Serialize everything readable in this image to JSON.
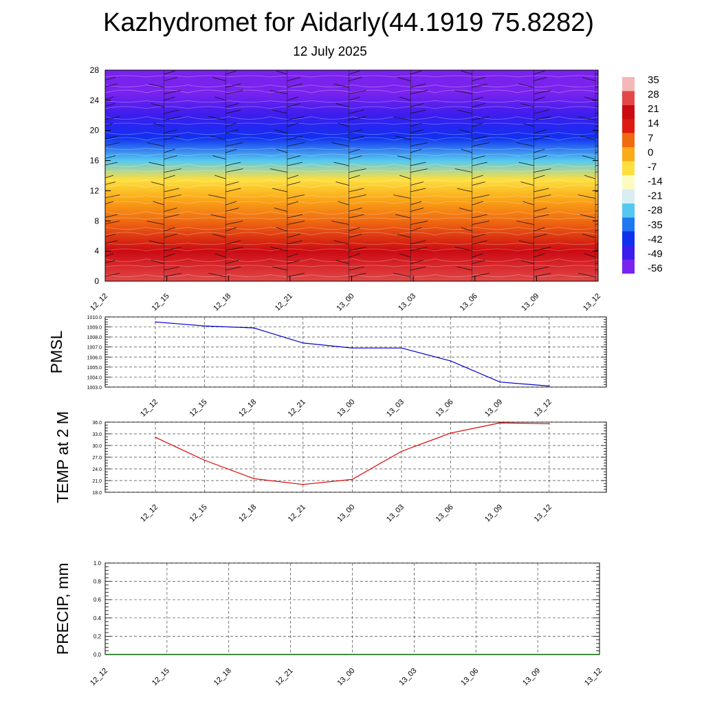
{
  "title": "Kazhydromet for Aidarly(44.1919 75.8282)",
  "subtitle": "12 July 2025",
  "time_labels": [
    "12_12",
    "12_15",
    "12_18",
    "12_21",
    "13_00",
    "13_03",
    "13_06",
    "13_09",
    "13_12"
  ],
  "chart_data": [
    {
      "type": "heatmap",
      "name": "temperature-profile",
      "x": [
        "12_12",
        "12_15",
        "12_18",
        "12_21",
        "13_00",
        "13_03",
        "13_06",
        "13_09",
        "13_12"
      ],
      "y_ticks": [
        0,
        4,
        8,
        12,
        16,
        20,
        24,
        28
      ],
      "ylim": [
        0,
        28
      ],
      "colorbar_labels": [
        "35",
        "28",
        "21",
        "14",
        "7",
        "0",
        "-7",
        "-14",
        "-21",
        "-28",
        "-35",
        "-42",
        "-49",
        "-56"
      ],
      "colorbar_range": [
        -63,
        42
      ],
      "colorscale": [
        "#7a22ee",
        "#3b1dee",
        "#1030f0",
        "#1e78f0",
        "#55c8ef",
        "#d8eef2",
        "#fdfbc0",
        "#fde040",
        "#fbaa18",
        "#f06a10",
        "#dc1a12",
        "#cc0a12",
        "#e24848",
        "#f4b8b8"
      ],
      "values_by_level": [
        {
          "level": 0,
          "value": 28
        },
        {
          "level": 4,
          "value": 20
        },
        {
          "level": 8,
          "value": 10
        },
        {
          "level": 11,
          "value": 3
        },
        {
          "level": 13.5,
          "value": -8
        },
        {
          "level": 16,
          "value": -28
        },
        {
          "level": 19,
          "value": -45
        },
        {
          "level": 22,
          "value": -50
        },
        {
          "level": 25,
          "value": -57
        },
        {
          "level": 28,
          "value": -60
        }
      ],
      "grid": false
    },
    {
      "type": "line",
      "ylabel": "PMSL",
      "x": [
        "12_12",
        "12_15",
        "12_18",
        "12_21",
        "13_00",
        "13_03",
        "13_06",
        "13_09",
        "13_12"
      ],
      "y_ticks": [
        "1010.0",
        "1009.0",
        "1008.0",
        "1007.0",
        "1006.0",
        "1005.0",
        "1004.0",
        "1003.0"
      ],
      "ylim": [
        1003,
        1010
      ],
      "series": [
        {
          "values": [
            1009.5,
            1009.1,
            1008.9,
            1007.4,
            1006.9,
            1006.9,
            1005.6,
            1003.5,
            1003.1
          ],
          "color": "#0000cc"
        }
      ],
      "grid": true
    },
    {
      "type": "line",
      "ylabel": "TEMP at 2 M",
      "x": [
        "12_12",
        "12_15",
        "12_18",
        "12_21",
        "13_00",
        "13_03",
        "13_06",
        "13_09",
        "13_12"
      ],
      "y_ticks": [
        "36.0",
        "33.0",
        "30.0",
        "27.0",
        "24.0",
        "21.0",
        "18.0"
      ],
      "ylim": [
        18,
        36
      ],
      "series": [
        {
          "values": [
            32.1,
            26.2,
            21.5,
            20.0,
            21.3,
            28.5,
            33.2,
            35.8,
            35.6
          ],
          "color": "#dd0000"
        }
      ],
      "grid": true
    },
    {
      "type": "line",
      "ylabel": "PRECIP, mm",
      "x": [
        "12_12",
        "12_15",
        "12_18",
        "12_21",
        "13_00",
        "13_03",
        "13_06",
        "13_09",
        "13_12"
      ],
      "y_ticks": [
        "0.0",
        "0.2",
        "0.4",
        "0.6",
        "0.8",
        "1.0"
      ],
      "ylim": [
        0,
        1
      ],
      "series": [
        {
          "values": [
            0,
            0,
            0,
            0,
            0,
            0,
            0,
            0,
            0
          ],
          "color": "#006600"
        }
      ],
      "grid": true
    }
  ]
}
